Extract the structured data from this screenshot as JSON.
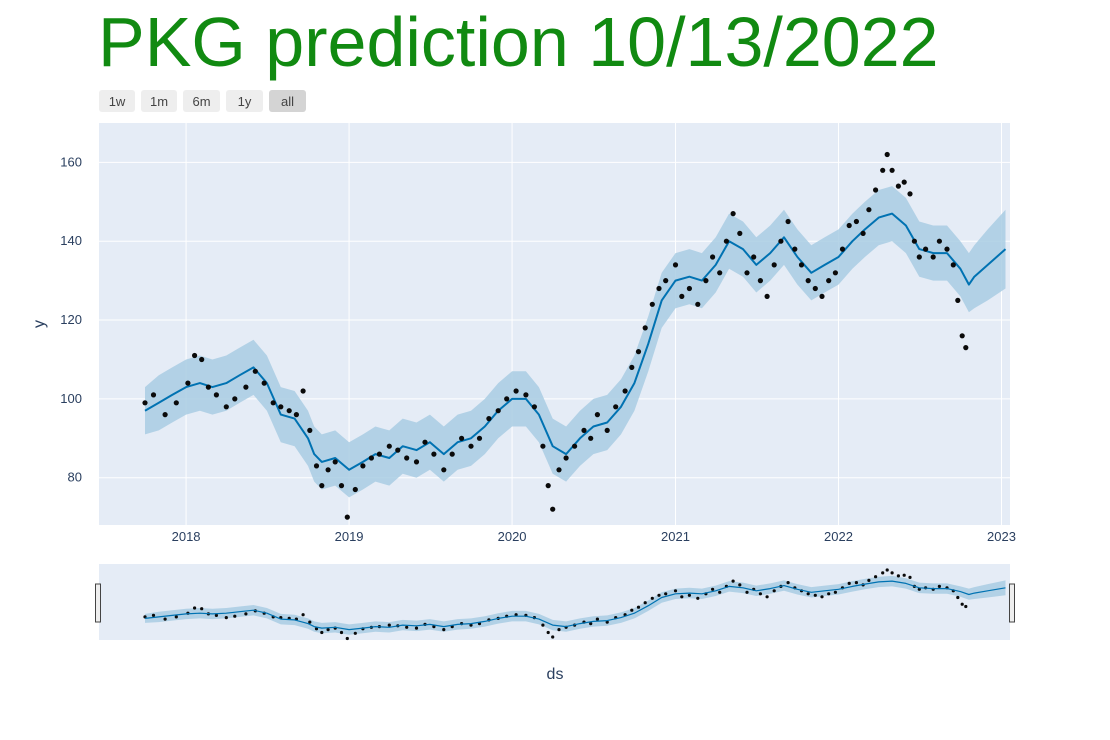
{
  "title": "PKG prediction 10/13/2022",
  "colors": {
    "title": "#118a11",
    "plot_bg": "#e5ecf6",
    "grid": "#ffffff",
    "actual_points": "#0a0a0a",
    "forecast_line": "#0072b2",
    "uncertainty_band": "#a9cce3",
    "range_button": "#eeeeee",
    "range_button_active": "#d4d4d4"
  },
  "range_buttons": [
    {
      "label": "1w",
      "active": false
    },
    {
      "label": "1m",
      "active": false
    },
    {
      "label": "6m",
      "active": false
    },
    {
      "label": "1y",
      "active": false
    },
    {
      "label": "all",
      "active": true
    }
  ],
  "chart_data": {
    "type": "line",
    "title": "PKG prediction 10/13/2022",
    "xlabel": "ds",
    "ylabel": "y",
    "xlim": [
      "2017-06-20",
      "2023-01-20"
    ],
    "ylim": [
      68,
      170
    ],
    "x_ticks": [
      "2018",
      "2019",
      "2020",
      "2021",
      "2022",
      "2023"
    ],
    "y_ticks": [
      80,
      100,
      120,
      140,
      160
    ],
    "grid": true,
    "legend": "none",
    "range_slider": true,
    "series": [
      {
        "role": "actual",
        "mode": "markers",
        "points": [
          [
            "2017-10-01",
            99
          ],
          [
            "2017-10-20",
            101
          ],
          [
            "2017-11-15",
            96
          ],
          [
            "2017-12-10",
            99
          ],
          [
            "2018-01-05",
            104
          ],
          [
            "2018-01-20",
            111
          ],
          [
            "2018-02-05",
            110
          ],
          [
            "2018-02-20",
            103
          ],
          [
            "2018-03-10",
            101
          ],
          [
            "2018-04-01",
            98
          ],
          [
            "2018-04-20",
            100
          ],
          [
            "2018-05-15",
            103
          ],
          [
            "2018-06-05",
            107
          ],
          [
            "2018-06-25",
            104
          ],
          [
            "2018-07-15",
            99
          ],
          [
            "2018-08-01",
            98
          ],
          [
            "2018-08-20",
            97
          ],
          [
            "2018-09-05",
            96
          ],
          [
            "2018-09-20",
            102
          ],
          [
            "2018-10-05",
            92
          ],
          [
            "2018-10-20",
            83
          ],
          [
            "2018-11-01",
            78
          ],
          [
            "2018-11-15",
            82
          ],
          [
            "2018-12-01",
            84
          ],
          [
            "2018-12-15",
            78
          ],
          [
            "2018-12-28",
            70
          ],
          [
            "2019-01-15",
            77
          ],
          [
            "2019-02-01",
            83
          ],
          [
            "2019-02-20",
            85
          ],
          [
            "2019-03-10",
            86
          ],
          [
            "2019-04-01",
            88
          ],
          [
            "2019-04-20",
            87
          ],
          [
            "2019-05-10",
            85
          ],
          [
            "2019-06-01",
            84
          ],
          [
            "2019-06-20",
            89
          ],
          [
            "2019-07-10",
            86
          ],
          [
            "2019-08-01",
            82
          ],
          [
            "2019-08-20",
            86
          ],
          [
            "2019-09-10",
            90
          ],
          [
            "2019-10-01",
            88
          ],
          [
            "2019-10-20",
            90
          ],
          [
            "2019-11-10",
            95
          ],
          [
            "2019-12-01",
            97
          ],
          [
            "2019-12-20",
            100
          ],
          [
            "2020-01-10",
            102
          ],
          [
            "2020-02-01",
            101
          ],
          [
            "2020-02-20",
            98
          ],
          [
            "2020-03-10",
            88
          ],
          [
            "2020-03-22",
            78
          ],
          [
            "2020-04-01",
            72
          ],
          [
            "2020-04-15",
            82
          ],
          [
            "2020-05-01",
            85
          ],
          [
            "2020-05-20",
            88
          ],
          [
            "2020-06-10",
            92
          ],
          [
            "2020-06-25",
            90
          ],
          [
            "2020-07-10",
            96
          ],
          [
            "2020-08-01",
            92
          ],
          [
            "2020-08-20",
            98
          ],
          [
            "2020-09-10",
            102
          ],
          [
            "2020-09-25",
            108
          ],
          [
            "2020-10-10",
            112
          ],
          [
            "2020-10-25",
            118
          ],
          [
            "2020-11-10",
            124
          ],
          [
            "2020-11-25",
            128
          ],
          [
            "2020-12-10",
            130
          ],
          [
            "2021-01-01",
            134
          ],
          [
            "2021-01-15",
            126
          ],
          [
            "2021-02-01",
            128
          ],
          [
            "2021-02-20",
            124
          ],
          [
            "2021-03-10",
            130
          ],
          [
            "2021-03-25",
            136
          ],
          [
            "2021-04-10",
            132
          ],
          [
            "2021-04-25",
            140
          ],
          [
            "2021-05-10",
            147
          ],
          [
            "2021-05-25",
            142
          ],
          [
            "2021-06-10",
            132
          ],
          [
            "2021-06-25",
            136
          ],
          [
            "2021-07-10",
            130
          ],
          [
            "2021-07-25",
            126
          ],
          [
            "2021-08-10",
            134
          ],
          [
            "2021-08-25",
            140
          ],
          [
            "2021-09-10",
            145
          ],
          [
            "2021-09-25",
            138
          ],
          [
            "2021-10-10",
            134
          ],
          [
            "2021-10-25",
            130
          ],
          [
            "2021-11-10",
            128
          ],
          [
            "2021-11-25",
            126
          ],
          [
            "2021-12-10",
            130
          ],
          [
            "2021-12-25",
            132
          ],
          [
            "2022-01-10",
            138
          ],
          [
            "2022-01-25",
            144
          ],
          [
            "2022-02-10",
            145
          ],
          [
            "2022-02-25",
            142
          ],
          [
            "2022-03-10",
            148
          ],
          [
            "2022-03-25",
            153
          ],
          [
            "2022-04-10",
            158
          ],
          [
            "2022-04-20",
            162
          ],
          [
            "2022-05-01",
            158
          ],
          [
            "2022-05-15",
            154
          ],
          [
            "2022-05-28",
            155
          ],
          [
            "2022-06-10",
            152
          ],
          [
            "2022-06-20",
            140
          ],
          [
            "2022-07-01",
            136
          ],
          [
            "2022-07-15",
            138
          ],
          [
            "2022-08-01",
            136
          ],
          [
            "2022-08-15",
            140
          ],
          [
            "2022-09-01",
            138
          ],
          [
            "2022-09-15",
            134
          ],
          [
            "2022-09-25",
            125
          ],
          [
            "2022-10-05",
            116
          ],
          [
            "2022-10-13",
            113
          ]
        ]
      },
      {
        "role": "forecast",
        "mode": "lines",
        "points": [
          [
            "2017-10-01",
            97
          ],
          [
            "2017-11-01",
            99
          ],
          [
            "2017-12-01",
            101
          ],
          [
            "2018-01-01",
            103
          ],
          [
            "2018-02-01",
            104
          ],
          [
            "2018-03-01",
            103
          ],
          [
            "2018-04-01",
            104
          ],
          [
            "2018-05-01",
            106
          ],
          [
            "2018-06-01",
            108
          ],
          [
            "2018-07-01",
            104
          ],
          [
            "2018-08-01",
            96
          ],
          [
            "2018-09-01",
            95
          ],
          [
            "2018-10-01",
            90
          ],
          [
            "2018-10-15",
            86
          ],
          [
            "2018-11-01",
            84
          ],
          [
            "2018-12-01",
            85
          ],
          [
            "2019-01-01",
            82
          ],
          [
            "2019-02-01",
            84
          ],
          [
            "2019-03-01",
            86
          ],
          [
            "2019-04-01",
            85
          ],
          [
            "2019-05-01",
            88
          ],
          [
            "2019-06-01",
            87
          ],
          [
            "2019-07-01",
            89
          ],
          [
            "2019-08-01",
            86
          ],
          [
            "2019-09-01",
            89
          ],
          [
            "2019-10-01",
            90
          ],
          [
            "2019-11-01",
            93
          ],
          [
            "2019-12-01",
            97
          ],
          [
            "2020-01-01",
            100
          ],
          [
            "2020-02-01",
            100
          ],
          [
            "2020-03-01",
            96
          ],
          [
            "2020-04-01",
            88
          ],
          [
            "2020-05-01",
            86
          ],
          [
            "2020-06-01",
            90
          ],
          [
            "2020-07-01",
            93
          ],
          [
            "2020-08-01",
            94
          ],
          [
            "2020-09-01",
            98
          ],
          [
            "2020-10-01",
            104
          ],
          [
            "2020-11-01",
            114
          ],
          [
            "2020-12-01",
            125
          ],
          [
            "2021-01-01",
            130
          ],
          [
            "2021-02-01",
            131
          ],
          [
            "2021-03-01",
            130
          ],
          [
            "2021-04-01",
            134
          ],
          [
            "2021-05-01",
            140
          ],
          [
            "2021-06-01",
            138
          ],
          [
            "2021-07-01",
            134
          ],
          [
            "2021-08-01",
            137
          ],
          [
            "2021-09-01",
            141
          ],
          [
            "2021-10-01",
            136
          ],
          [
            "2021-11-01",
            132
          ],
          [
            "2021-12-01",
            134
          ],
          [
            "2022-01-01",
            136
          ],
          [
            "2022-02-01",
            140
          ],
          [
            "2022-03-01",
            143
          ],
          [
            "2022-04-01",
            146
          ],
          [
            "2022-05-01",
            147
          ],
          [
            "2022-06-01",
            144
          ],
          [
            "2022-07-01",
            138
          ],
          [
            "2022-08-01",
            137
          ],
          [
            "2022-09-01",
            137
          ],
          [
            "2022-10-01",
            133
          ],
          [
            "2022-10-20",
            129
          ],
          [
            "2022-11-01",
            131
          ],
          [
            "2022-12-01",
            134
          ],
          [
            "2023-01-10",
            138
          ]
        ]
      },
      {
        "role": "uncertainty_interval",
        "mode": "band",
        "points": [
          [
            "2017-10-01",
            91,
            103
          ],
          [
            "2017-11-01",
            92,
            106
          ],
          [
            "2017-12-01",
            94,
            108
          ],
          [
            "2018-01-01",
            96,
            110
          ],
          [
            "2018-02-01",
            97,
            111
          ],
          [
            "2018-03-01",
            96,
            110
          ],
          [
            "2018-04-01",
            97,
            111
          ],
          [
            "2018-05-01",
            99,
            113
          ],
          [
            "2018-06-01",
            101,
            115
          ],
          [
            "2018-07-01",
            97,
            111
          ],
          [
            "2018-08-01",
            89,
            103
          ],
          [
            "2018-09-01",
            88,
            102
          ],
          [
            "2018-10-01",
            83,
            97
          ],
          [
            "2018-10-15",
            79,
            93
          ],
          [
            "2018-11-01",
            77,
            91
          ],
          [
            "2018-12-01",
            78,
            92
          ],
          [
            "2019-01-01",
            75,
            89
          ],
          [
            "2019-02-01",
            77,
            91
          ],
          [
            "2019-03-01",
            79,
            93
          ],
          [
            "2019-04-01",
            78,
            92
          ],
          [
            "2019-05-01",
            81,
            95
          ],
          [
            "2019-06-01",
            80,
            94
          ],
          [
            "2019-07-01",
            82,
            96
          ],
          [
            "2019-08-01",
            79,
            93
          ],
          [
            "2019-09-01",
            82,
            96
          ],
          [
            "2019-10-01",
            83,
            97
          ],
          [
            "2019-11-01",
            86,
            100
          ],
          [
            "2019-12-01",
            90,
            104
          ],
          [
            "2020-01-01",
            93,
            107
          ],
          [
            "2020-02-01",
            93,
            107
          ],
          [
            "2020-03-01",
            89,
            103
          ],
          [
            "2020-04-01",
            81,
            95
          ],
          [
            "2020-05-01",
            79,
            93
          ],
          [
            "2020-06-01",
            83,
            97
          ],
          [
            "2020-07-01",
            86,
            100
          ],
          [
            "2020-08-01",
            87,
            101
          ],
          [
            "2020-09-01",
            91,
            105
          ],
          [
            "2020-10-01",
            97,
            111
          ],
          [
            "2020-11-01",
            107,
            121
          ],
          [
            "2020-12-01",
            118,
            132
          ],
          [
            "2021-01-01",
            123,
            137
          ],
          [
            "2021-02-01",
            124,
            138
          ],
          [
            "2021-03-01",
            123,
            137
          ],
          [
            "2021-04-01",
            127,
            141
          ],
          [
            "2021-05-01",
            133,
            147
          ],
          [
            "2021-06-01",
            131,
            145
          ],
          [
            "2021-07-01",
            127,
            141
          ],
          [
            "2021-08-01",
            130,
            144
          ],
          [
            "2021-09-01",
            134,
            148
          ],
          [
            "2021-10-01",
            129,
            143
          ],
          [
            "2021-11-01",
            125,
            139
          ],
          [
            "2021-12-01",
            127,
            141
          ],
          [
            "2022-01-01",
            129,
            143
          ],
          [
            "2022-02-01",
            133,
            147
          ],
          [
            "2022-03-01",
            136,
            150
          ],
          [
            "2022-04-01",
            139,
            153
          ],
          [
            "2022-05-01",
            140,
            154
          ],
          [
            "2022-06-01",
            137,
            151
          ],
          [
            "2022-07-01",
            131,
            145
          ],
          [
            "2022-08-01",
            130,
            144
          ],
          [
            "2022-09-01",
            130,
            144
          ],
          [
            "2022-10-01",
            126,
            140
          ],
          [
            "2022-10-20",
            122,
            137
          ],
          [
            "2022-11-01",
            123,
            139
          ],
          [
            "2022-12-01",
            125,
            143
          ],
          [
            "2023-01-10",
            128,
            148
          ]
        ]
      }
    ]
  }
}
